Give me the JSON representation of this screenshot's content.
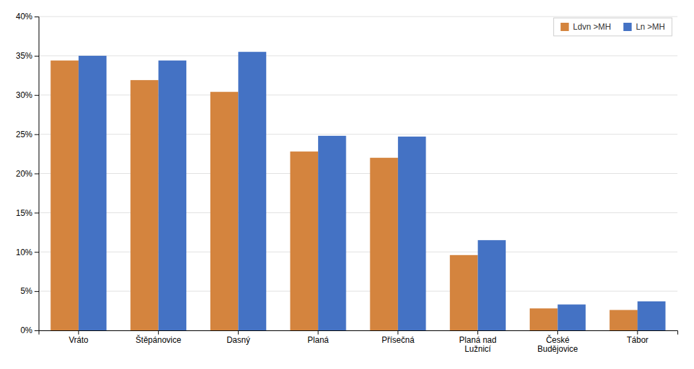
{
  "chart_data": {
    "type": "bar",
    "categories": [
      "Vráto",
      "Štěpánovice",
      "Dasný",
      "Planá",
      "Přísečná",
      "Planá nad\nLužnicí",
      "České\nBudějovice",
      "Tábor"
    ],
    "series": [
      {
        "name": "Ldvn >MH",
        "color": "#D4843E",
        "values": [
          0.344,
          0.319,
          0.304,
          0.228,
          0.22,
          0.096,
          0.028,
          0.026
        ]
      },
      {
        "name": "Ln >MH",
        "color": "#4472C4",
        "values": [
          0.35,
          0.344,
          0.355,
          0.248,
          0.247,
          0.115,
          0.033,
          0.037
        ]
      }
    ],
    "ylim": [
      0,
      0.4
    ],
    "yticks": [
      {
        "value": 0.0,
        "label": "0%"
      },
      {
        "value": 0.05,
        "label": "5%"
      },
      {
        "value": 0.1,
        "label": "10%"
      },
      {
        "value": 0.15,
        "label": "15%"
      },
      {
        "value": 0.2,
        "label": "20%"
      },
      {
        "value": 0.25,
        "label": "25%"
      },
      {
        "value": 0.3,
        "label": "30%"
      },
      {
        "value": 0.35,
        "label": "35%"
      },
      {
        "value": 0.4,
        "label": "40%"
      }
    ],
    "grid": true,
    "legend": "upper right"
  }
}
